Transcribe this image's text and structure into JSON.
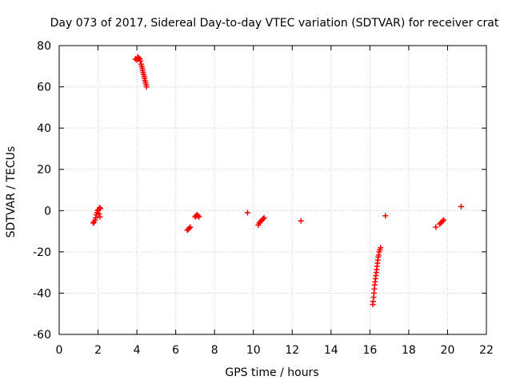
{
  "chart_data": {
    "type": "scatter",
    "title": "Day 073 of 2017, Sidereal Day-to-day VTEC variation (SDTVAR) for receiver crat",
    "xlabel": "GPS time / hours",
    "ylabel": "SDTVAR / TECUs",
    "xlim": [
      0,
      22
    ],
    "ylim": [
      -60,
      80
    ],
    "xticks": [
      0,
      2,
      4,
      6,
      8,
      10,
      12,
      14,
      16,
      18,
      20,
      22
    ],
    "yticks": [
      -60,
      -40,
      -20,
      0,
      20,
      40,
      60,
      80
    ],
    "grid": true,
    "marker": "plus",
    "color": "#ff0000",
    "series": [
      {
        "name": "SDTVAR",
        "points": [
          [
            1.75,
            -6.0
          ],
          [
            1.8,
            -5.5
          ],
          [
            1.85,
            -4.5
          ],
          [
            1.88,
            -3.5
          ],
          [
            1.92,
            -2.0
          ],
          [
            1.95,
            -1.0
          ],
          [
            1.98,
            0.0
          ],
          [
            2.02,
            0.5
          ],
          [
            2.05,
            -1.5
          ],
          [
            2.08,
            1.5
          ],
          [
            2.1,
            -3.0
          ],
          [
            2.12,
            1.0
          ],
          [
            3.92,
            73.5
          ],
          [
            4.0,
            73.0
          ],
          [
            4.05,
            74.5
          ],
          [
            4.1,
            74.0
          ],
          [
            4.15,
            73.5
          ],
          [
            4.18,
            72.5
          ],
          [
            4.22,
            71.0
          ],
          [
            4.25,
            70.0
          ],
          [
            4.28,
            69.0
          ],
          [
            4.3,
            68.0
          ],
          [
            4.32,
            67.0
          ],
          [
            4.35,
            66.0
          ],
          [
            4.38,
            65.0
          ],
          [
            4.4,
            64.0
          ],
          [
            4.42,
            63.0
          ],
          [
            4.45,
            62.0
          ],
          [
            4.48,
            61.0
          ],
          [
            4.5,
            60.0
          ],
          [
            6.6,
            -9.5
          ],
          [
            6.65,
            -9.0
          ],
          [
            6.7,
            -8.5
          ],
          [
            6.75,
            -8.0
          ],
          [
            7.0,
            -3.0
          ],
          [
            7.05,
            -2.5
          ],
          [
            7.1,
            -2.0
          ],
          [
            7.15,
            -2.5
          ],
          [
            7.2,
            -3.0
          ],
          [
            9.7,
            -1.0
          ],
          [
            10.25,
            -7.0
          ],
          [
            10.3,
            -6.0
          ],
          [
            10.35,
            -5.5
          ],
          [
            10.4,
            -5.0
          ],
          [
            10.45,
            -4.5
          ],
          [
            10.5,
            -4.0
          ],
          [
            10.55,
            -3.5
          ],
          [
            12.45,
            -5.0
          ],
          [
            16.15,
            -45.5
          ],
          [
            16.17,
            -44.0
          ],
          [
            16.19,
            -42.0
          ],
          [
            16.21,
            -40.0
          ],
          [
            16.23,
            -38.0
          ],
          [
            16.25,
            -36.0
          ],
          [
            16.27,
            -34.5
          ],
          [
            16.29,
            -33.0
          ],
          [
            16.31,
            -31.5
          ],
          [
            16.33,
            -30.0
          ],
          [
            16.35,
            -28.5
          ],
          [
            16.37,
            -27.0
          ],
          [
            16.39,
            -25.5
          ],
          [
            16.41,
            -24.0
          ],
          [
            16.43,
            -22.5
          ],
          [
            16.45,
            -21.5
          ],
          [
            16.48,
            -20.0
          ],
          [
            16.51,
            -19.0
          ],
          [
            16.55,
            -18.0
          ],
          [
            16.8,
            -2.5
          ],
          [
            19.4,
            -8.0
          ],
          [
            19.6,
            -6.5
          ],
          [
            19.65,
            -6.0
          ],
          [
            19.7,
            -5.5
          ],
          [
            19.75,
            -5.0
          ],
          [
            19.8,
            -4.5
          ],
          [
            20.7,
            2.0
          ]
        ]
      }
    ]
  }
}
